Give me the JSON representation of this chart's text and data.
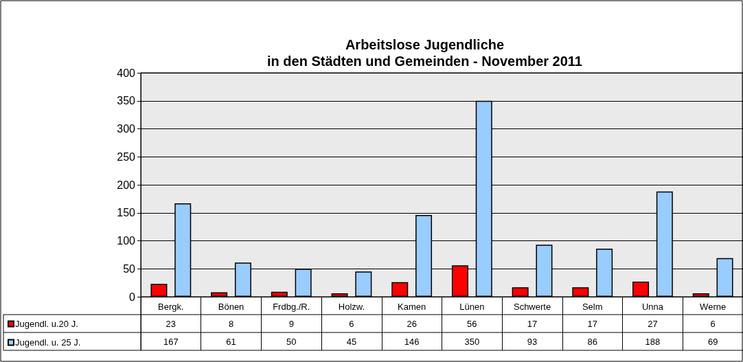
{
  "chart_data": {
    "type": "bar",
    "title": "Arbeitslose Jugendliche\nin den Städten und Gemeinden - November 2011",
    "categories": [
      "Bergk.",
      "Bönen",
      "Frdbg./R.",
      "Holzw.",
      "Kamen",
      "Lünen",
      "Schwerte",
      "Selm",
      "Unna",
      "Werne"
    ],
    "series": [
      {
        "name": "Jugendl. u.20 J.",
        "color": "#ff0000",
        "values": [
          23,
          8,
          9,
          6,
          26,
          56,
          17,
          17,
          27,
          6
        ]
      },
      {
        "name": "Jugendl. u. 25 J.",
        "color": "#99ccff",
        "values": [
          167,
          61,
          50,
          45,
          146,
          350,
          93,
          86,
          188,
          69
        ]
      }
    ],
    "ylim": [
      0,
      400
    ],
    "yticks": [
      0,
      50,
      100,
      150,
      200,
      250,
      300,
      350,
      400
    ],
    "grid": "y",
    "legend": "bottom left",
    "data_labels": true
  }
}
